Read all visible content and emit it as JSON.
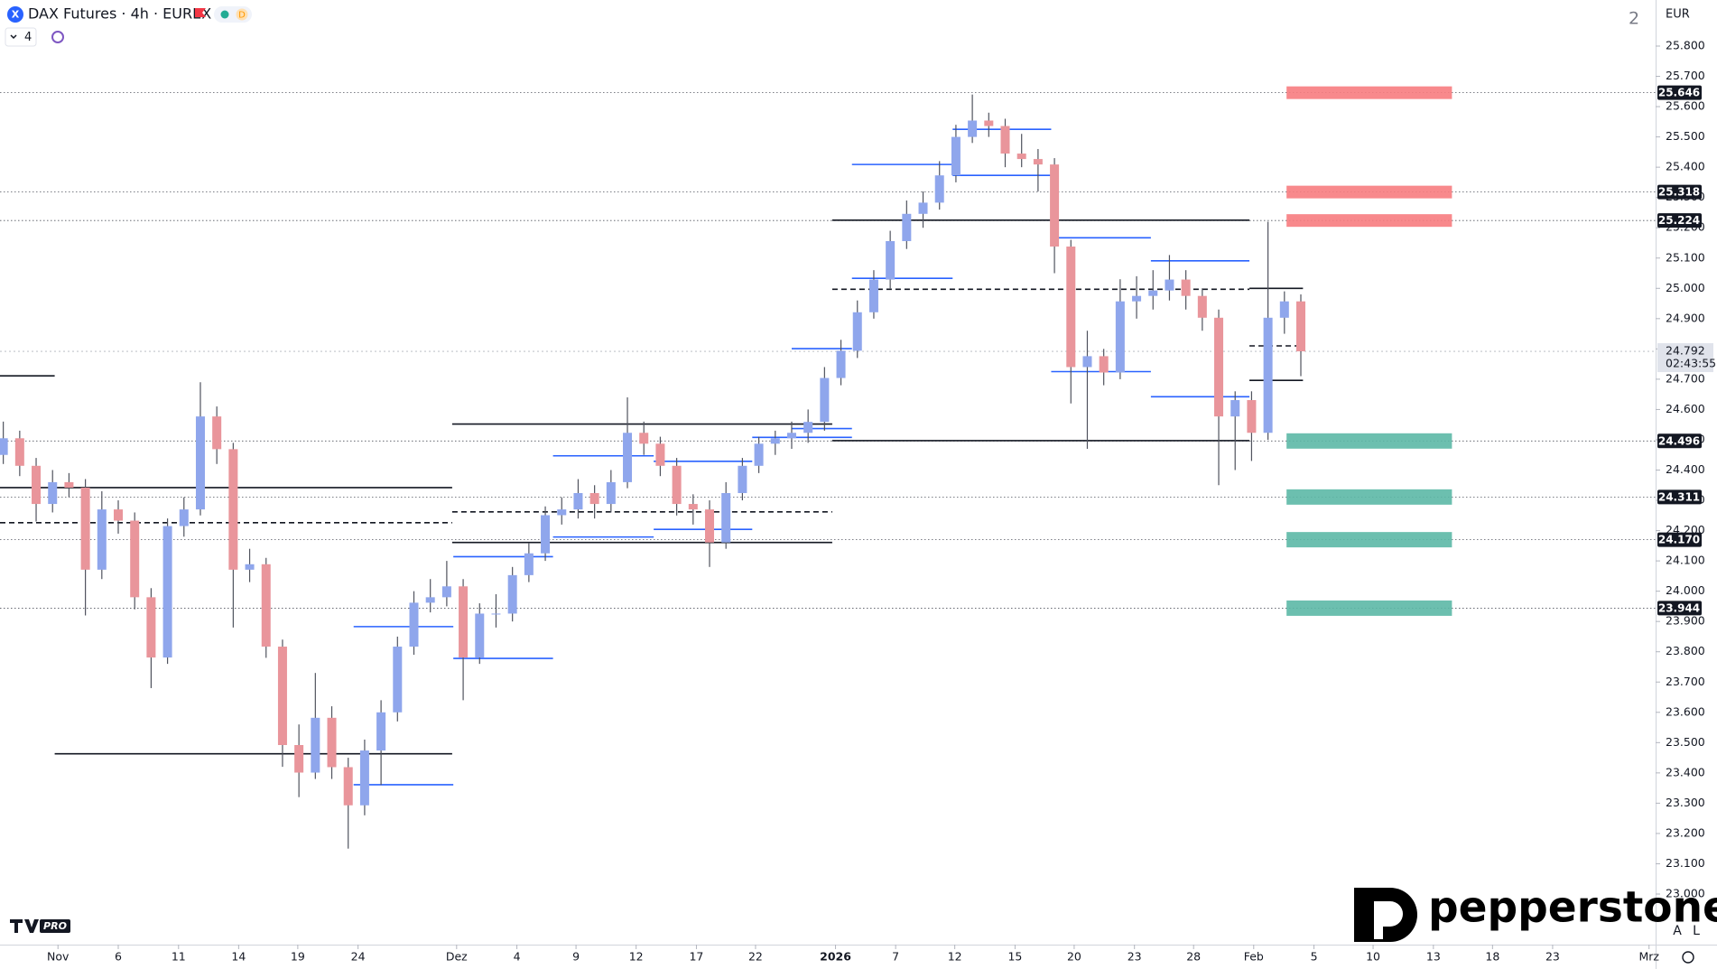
{
  "ui": {
    "title": "DAX Futures · 4h · EUREX",
    "symbol_icon": "X",
    "badge": "D",
    "indicators": "4",
    "currency": "EUR",
    "layout_count": "2",
    "logo": "pepperstone",
    "tv_badge": "PRO",
    "countdown": "02:43:55",
    "scale_auto": "A",
    "scale_log": "L"
  },
  "chart_data": {
    "type": "candlestick",
    "open": [
      24450,
      24505,
      24414,
      24288,
      24360,
      24342,
      24071,
      24270,
      24233,
      23980,
      23781,
      24215,
      24270,
      24577,
      24469,
      24071,
      24089,
      23817,
      23492,
      23401,
      23582,
      23419,
      23293,
      23474,
      23600,
      23817,
      23962,
      23980,
      24016,
      23781,
      23926,
      23926,
      24053,
      24125,
      24251,
      24270,
      24324,
      24288,
      24360,
      24523,
      24487,
      24414,
      24288,
      24270,
      24161,
      24324,
      24414,
      24487,
      24505,
      24523,
      24559,
      24704,
      24794,
      24921,
      25029,
      25156,
      25246,
      25283,
      25373,
      25500,
      25554,
      25536,
      25445,
      25427,
      25409,
      25138,
      24740,
      24776,
      24722,
      24957,
      24975,
      24993,
      25029,
      24975,
      24903,
      24577,
      24631,
      24523,
      24903,
      24957
    ],
    "high": [
      24560,
      24530,
      24440,
      24400,
      24390,
      24370,
      24330,
      24300,
      24260,
      24010,
      24240,
      24310,
      24690,
      24610,
      24490,
      24140,
      24110,
      23840,
      23560,
      23730,
      23620,
      23450,
      23510,
      23640,
      23850,
      24000,
      24040,
      24100,
      24040,
      23960,
      23990,
      24080,
      24160,
      24280,
      24310,
      24370,
      24350,
      24400,
      24640,
      24560,
      24510,
      24440,
      24320,
      24300,
      24360,
      24440,
      24510,
      24530,
      24560,
      24600,
      24740,
      24830,
      24960,
      25060,
      25190,
      25290,
      25320,
      25420,
      25540,
      25640,
      25580,
      25560,
      25510,
      25460,
      25430,
      25160,
      24860,
      24800,
      25030,
      25040,
      25060,
      25110,
      25060,
      25000,
      24930,
      24660,
      24660,
      25220,
      24990,
      24980
    ],
    "low": [
      24420,
      24380,
      24230,
      24260,
      24310,
      23920,
      24040,
      24190,
      23940,
      23680,
      23760,
      24180,
      24250,
      24420,
      23880,
      24030,
      23780,
      23420,
      23320,
      23380,
      23380,
      23150,
      23260,
      23360,
      23570,
      23790,
      23930,
      23950,
      23640,
      23760,
      23880,
      23900,
      24030,
      24100,
      24220,
      24240,
      24240,
      24260,
      24340,
      24450,
      24380,
      24250,
      24220,
      24080,
      24140,
      24300,
      24390,
      24450,
      24470,
      24490,
      24530,
      24680,
      24770,
      24900,
      25000,
      25130,
      25200,
      25260,
      25350,
      25480,
      25500,
      25400,
      25400,
      25320,
      25050,
      24620,
      24470,
      24680,
      24700,
      24900,
      24930,
      24960,
      24930,
      24860,
      24350,
      24400,
      24430,
      24500,
      24850,
      24710
    ],
    "close": [
      24505,
      24414,
      24288,
      24360,
      24342,
      24071,
      24270,
      24233,
      23980,
      23781,
      24215,
      24270,
      24577,
      24469,
      24071,
      24089,
      23817,
      23492,
      23401,
      23582,
      23419,
      23293,
      23474,
      23600,
      23817,
      23962,
      23980,
      24016,
      23781,
      23926,
      23926,
      24053,
      24125,
      24251,
      24270,
      24324,
      24288,
      24360,
      24523,
      24487,
      24414,
      24288,
      24270,
      24161,
      24324,
      24414,
      24487,
      24505,
      24523,
      24559,
      24704,
      24794,
      24921,
      25029,
      25156,
      25246,
      25283,
      25373,
      25500,
      25554,
      25536,
      25445,
      25427,
      25409,
      25138,
      24740,
      24776,
      24722,
      24957,
      24975,
      24993,
      25029,
      24975,
      24903,
      24577,
      24631,
      24523,
      24903,
      24957,
      24792
    ],
    "up_color": "#8fa6ec",
    "down_color": "#e9959b",
    "wick_color": "#50535e",
    "xlim": [
      -0.2,
      100.6
    ],
    "ylim": [
      23000,
      25800
    ],
    "xticks": [
      {
        "value": 3.33,
        "label": "Nov"
      },
      {
        "value": 7.0,
        "label": "6"
      },
      {
        "value": 10.67,
        "label": "11"
      },
      {
        "value": 14.33,
        "label": "14"
      },
      {
        "value": 17.93,
        "label": "19"
      },
      {
        "value": 21.6,
        "label": "24"
      },
      {
        "value": 27.6,
        "label": "Dez"
      },
      {
        "value": 31.27,
        "label": "4"
      },
      {
        "value": 34.87,
        "label": "9"
      },
      {
        "value": 38.53,
        "label": "12"
      },
      {
        "value": 42.2,
        "label": "17"
      },
      {
        "value": 45.8,
        "label": "22"
      },
      {
        "value": 50.67,
        "label": "2026"
      },
      {
        "value": 54.33,
        "label": "7"
      },
      {
        "value": 57.93,
        "label": "12"
      },
      {
        "value": 61.6,
        "label": "15"
      },
      {
        "value": 65.2,
        "label": "20"
      },
      {
        "value": 68.87,
        "label": "23"
      },
      {
        "value": 72.47,
        "label": "28"
      },
      {
        "value": 76.13,
        "label": "Feb"
      },
      {
        "value": 79.8,
        "label": "5"
      },
      {
        "value": 83.4,
        "label": "10"
      },
      {
        "value": 87.07,
        "label": "13"
      },
      {
        "value": 90.67,
        "label": "18"
      },
      {
        "value": 94.33,
        "label": "23"
      },
      {
        "value": 100.2,
        "label": "Mrz"
      }
    ],
    "yticks": [
      {
        "value": 25800,
        "label": "25.800"
      },
      {
        "value": 25700,
        "label": "25.700"
      },
      {
        "value": 25600,
        "label": "25.600"
      },
      {
        "value": 25500,
        "label": "25.500"
      },
      {
        "value": 25400,
        "label": "25.400"
      },
      {
        "value": 25300,
        "label": "25.300"
      },
      {
        "value": 25200,
        "label": "25.200"
      },
      {
        "value": 25100,
        "label": "25.100"
      },
      {
        "value": 25000,
        "label": "25.000"
      },
      {
        "value": 24900,
        "label": "24.900"
      },
      {
        "value": 24800,
        "label": "24.800"
      },
      {
        "value": 24700,
        "label": "24.700"
      },
      {
        "value": 24600,
        "label": "24.600"
      },
      {
        "value": 24500,
        "label": "24.500"
      },
      {
        "value": 24400,
        "label": "24.400"
      },
      {
        "value": 24300,
        "label": "24.300"
      },
      {
        "value": 24200,
        "label": "24.200"
      },
      {
        "value": 24100,
        "label": "24.100"
      },
      {
        "value": 24000,
        "label": "24.000"
      },
      {
        "value": 23900,
        "label": "23.900"
      },
      {
        "value": 23800,
        "label": "23.800"
      },
      {
        "value": 23700,
        "label": "23.700"
      },
      {
        "value": 23600,
        "label": "23.600"
      },
      {
        "value": 23500,
        "label": "23.500"
      },
      {
        "value": 23400,
        "label": "23.400"
      },
      {
        "value": 23300,
        "label": "23.300"
      },
      {
        "value": 23200,
        "label": "23.200"
      },
      {
        "value": 23100,
        "label": "23.100"
      },
      {
        "value": 23000,
        "label": "23.000"
      }
    ],
    "last_price": {
      "value": 24792,
      "label": "24.792"
    },
    "zones": [
      {
        "value": 25646,
        "label": "25.646",
        "color": "#f77c80",
        "x": [
          78.13,
          88.2
        ]
      },
      {
        "value": 25318,
        "label": "25.318",
        "color": "#f77c80",
        "x": [
          78.13,
          88.2
        ]
      },
      {
        "value": 25224,
        "label": "25.224",
        "color": "#f77c80",
        "x": [
          78.13,
          88.2
        ]
      },
      {
        "value": 24496,
        "label": "24.496",
        "color": "#5cb8a6",
        "x": [
          78.13,
          88.2
        ]
      },
      {
        "value": 24311,
        "label": "24.311",
        "color": "#5cb8a6",
        "x": [
          78.13,
          88.2
        ]
      },
      {
        "value": 24170,
        "label": "24.170",
        "color": "#5cb8a6",
        "x": [
          78.13,
          88.2
        ]
      },
      {
        "value": 23944,
        "label": "23.944",
        "color": "#5cb8a6",
        "x": [
          78.13,
          88.2
        ]
      }
    ],
    "levels": [
      {
        "value": 24711,
        "x": [
          -0.2,
          3.13
        ],
        "color": "#131722",
        "style": "solid"
      },
      {
        "value": 24342,
        "x": [
          -0.2,
          27.33
        ],
        "color": "#131722",
        "style": "solid"
      },
      {
        "value": 24226,
        "x": [
          -0.2,
          27.33
        ],
        "color": "#131722",
        "style": "dashed"
      },
      {
        "value": 23463,
        "x": [
          3.13,
          27.33
        ],
        "color": "#131722",
        "style": "solid"
      },
      {
        "value": 24552,
        "x": [
          27.33,
          50.47
        ],
        "color": "#131722",
        "style": "solid"
      },
      {
        "value": 24161,
        "x": [
          27.33,
          50.47
        ],
        "color": "#131722",
        "style": "solid"
      },
      {
        "value": 24262,
        "x": [
          27.33,
          50.47
        ],
        "color": "#131722",
        "style": "dashed"
      },
      {
        "value": 25225,
        "x": [
          50.47,
          75.87
        ],
        "color": "#131722",
        "style": "solid"
      },
      {
        "value": 24997,
        "x": [
          50.47,
          75.87
        ],
        "color": "#131722",
        "style": "dashed"
      },
      {
        "value": 24497,
        "x": [
          50.47,
          75.87
        ],
        "color": "#131722",
        "style": "solid"
      },
      {
        "value": 25000,
        "x": [
          75.87,
          79.13
        ],
        "color": "#131722",
        "style": "solid"
      },
      {
        "value": 24696,
        "x": [
          75.87,
          79.13
        ],
        "color": "#131722",
        "style": "solid"
      },
      {
        "value": 24810,
        "x": [
          75.87,
          79.13
        ],
        "color": "#131722",
        "style": "dashed"
      },
      {
        "value": 25409,
        "x": [
          51.67,
          57.8
        ],
        "color": "#2962ff",
        "style": "solid"
      },
      {
        "value": 25525,
        "x": [
          57.8,
          63.8
        ],
        "color": "#2962ff",
        "style": "solid"
      },
      {
        "value": 25373,
        "x": [
          57.8,
          63.8
        ],
        "color": "#2962ff",
        "style": "solid"
      },
      {
        "value": 25167,
        "x": [
          63.8,
          69.87
        ],
        "color": "#2962ff",
        "style": "solid"
      },
      {
        "value": 25091,
        "x": [
          69.87,
          75.87
        ],
        "color": "#2962ff",
        "style": "solid"
      },
      {
        "value": 24725,
        "x": [
          63.8,
          69.87
        ],
        "color": "#2962ff",
        "style": "solid"
      },
      {
        "value": 24642,
        "x": [
          69.87,
          75.87
        ],
        "color": "#2962ff",
        "style": "solid"
      },
      {
        "value": 24801,
        "x": [
          48,
          51.67
        ],
        "color": "#2962ff",
        "style": "solid"
      },
      {
        "value": 25033,
        "x": [
          51.67,
          57.8
        ],
        "color": "#2962ff",
        "style": "solid"
      },
      {
        "value": 24537,
        "x": [
          48,
          51.67
        ],
        "color": "#2962ff",
        "style": "solid"
      },
      {
        "value": 24447,
        "x": [
          33.47,
          39.6
        ],
        "color": "#2962ff",
        "style": "solid"
      },
      {
        "value": 24429,
        "x": [
          39.6,
          45.6
        ],
        "color": "#2962ff",
        "style": "solid"
      },
      {
        "value": 24204,
        "x": [
          39.6,
          45.6
        ],
        "color": "#2962ff",
        "style": "solid"
      },
      {
        "value": 24179,
        "x": [
          33.47,
          39.6
        ],
        "color": "#2962ff",
        "style": "solid"
      },
      {
        "value": 24114,
        "x": [
          27.4,
          33.47
        ],
        "color": "#2962ff",
        "style": "solid"
      },
      {
        "value": 23883,
        "x": [
          21.33,
          27.4
        ],
        "color": "#2962ff",
        "style": "solid"
      },
      {
        "value": 23778,
        "x": [
          27.4,
          33.47
        ],
        "color": "#2962ff",
        "style": "solid"
      },
      {
        "value": 23361,
        "x": [
          21.33,
          27.4
        ],
        "color": "#2962ff",
        "style": "solid"
      },
      {
        "value": 24508,
        "x": [
          45.6,
          51.67
        ],
        "color": "#2962ff",
        "style": "solid"
      }
    ]
  }
}
